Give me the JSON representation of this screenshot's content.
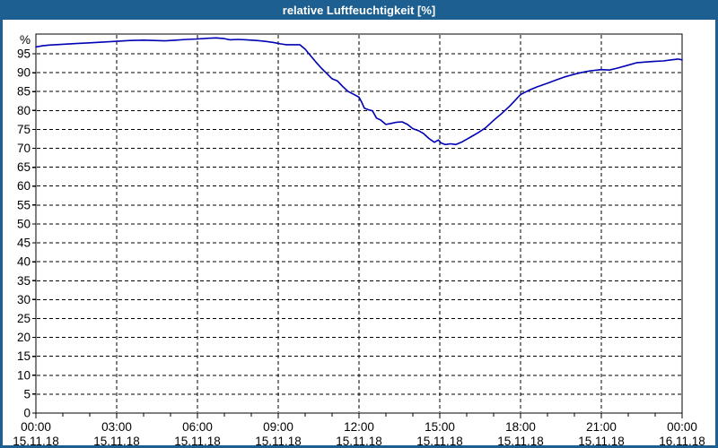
{
  "window": {
    "title": "relative Luftfeuchtigkeit [%]",
    "title_bar_color": "#1d5f90",
    "background_color": "#ffffff"
  },
  "chart_data": {
    "type": "line",
    "title": "relative Luftfeuchtigkeit [%]",
    "unit_label": "%",
    "grid": "dashed black, horizontal every 5 %, vertical every 3 h",
    "legend_position": "none",
    "x_axis": {
      "range_hours": [
        0,
        24
      ],
      "minor_tick_every_hours": 1,
      "major_tick_every_hours": 3,
      "major_ticks": [
        {
          "hour": 0,
          "time": "00:00",
          "date": "15.11.18"
        },
        {
          "hour": 3,
          "time": "03:00",
          "date": "15.11.18"
        },
        {
          "hour": 6,
          "time": "06:00",
          "date": "15.11.18"
        },
        {
          "hour": 9,
          "time": "09:00",
          "date": "15.11.18"
        },
        {
          "hour": 12,
          "time": "12:00",
          "date": "15.11.18"
        },
        {
          "hour": 15,
          "time": "15:00",
          "date": "15.11.18"
        },
        {
          "hour": 18,
          "time": "18:00",
          "date": "15.11.18"
        },
        {
          "hour": 21,
          "time": "21:00",
          "date": "15.11.18"
        },
        {
          "hour": 24,
          "time": "00:00",
          "date": "16.11.18"
        }
      ]
    },
    "y_axis": {
      "min": 0,
      "top_of_plot_value": 100,
      "tick_step": 5,
      "tick_values": [
        0,
        5,
        10,
        15,
        20,
        25,
        30,
        35,
        40,
        45,
        50,
        55,
        60,
        65,
        70,
        75,
        80,
        85,
        90,
        95
      ],
      "unit": "%"
    },
    "series": [
      {
        "name": "relative Luftfeuchtigkeit",
        "color": "#0000b4",
        "points": [
          [
            0.0,
            96.8
          ],
          [
            0.25,
            97.1
          ],
          [
            0.5,
            97.3
          ],
          [
            1.0,
            97.5
          ],
          [
            1.5,
            97.7
          ],
          [
            2.0,
            97.9
          ],
          [
            2.5,
            98.1
          ],
          [
            3.0,
            98.3
          ],
          [
            3.5,
            98.5
          ],
          [
            4.0,
            98.6
          ],
          [
            4.4,
            98.5
          ],
          [
            4.8,
            98.4
          ],
          [
            5.2,
            98.6
          ],
          [
            5.6,
            98.8
          ],
          [
            6.0,
            98.9
          ],
          [
            6.4,
            99.1
          ],
          [
            6.7,
            99.2
          ],
          [
            7.0,
            99.0
          ],
          [
            7.2,
            98.7
          ],
          [
            7.5,
            98.8
          ],
          [
            7.8,
            98.7
          ],
          [
            8.2,
            98.5
          ],
          [
            8.5,
            98.3
          ],
          [
            8.8,
            98.0
          ],
          [
            9.1,
            97.6
          ],
          [
            9.3,
            97.4
          ],
          [
            9.8,
            97.4
          ],
          [
            10.0,
            96.2
          ],
          [
            10.2,
            94.5
          ],
          [
            10.4,
            92.8
          ],
          [
            10.6,
            91.2
          ],
          [
            10.8,
            89.8
          ],
          [
            11.0,
            88.4
          ],
          [
            11.2,
            87.8
          ],
          [
            11.4,
            86.3
          ],
          [
            11.6,
            85.0
          ],
          [
            11.8,
            84.3
          ],
          [
            12.0,
            83.5
          ],
          [
            12.1,
            82.2
          ],
          [
            12.2,
            80.6
          ],
          [
            12.35,
            80.2
          ],
          [
            12.5,
            79.9
          ],
          [
            12.65,
            78.0
          ],
          [
            12.8,
            77.5
          ],
          [
            13.0,
            76.3
          ],
          [
            13.2,
            76.6
          ],
          [
            13.4,
            76.9
          ],
          [
            13.6,
            77.0
          ],
          [
            13.8,
            76.3
          ],
          [
            14.0,
            75.2
          ],
          [
            14.2,
            74.7
          ],
          [
            14.4,
            73.9
          ],
          [
            14.6,
            72.6
          ],
          [
            14.8,
            71.6
          ],
          [
            14.95,
            72.2
          ],
          [
            15.05,
            71.4
          ],
          [
            15.2,
            71.0
          ],
          [
            15.4,
            71.2
          ],
          [
            15.6,
            71.0
          ],
          [
            15.8,
            71.6
          ],
          [
            16.0,
            72.4
          ],
          [
            16.2,
            73.2
          ],
          [
            16.4,
            74.0
          ],
          [
            16.7,
            75.4
          ],
          [
            17.0,
            77.4
          ],
          [
            17.3,
            79.2
          ],
          [
            17.6,
            81.2
          ],
          [
            18.0,
            84.2
          ],
          [
            18.3,
            85.3
          ],
          [
            18.6,
            86.2
          ],
          [
            19.0,
            87.2
          ],
          [
            19.3,
            88.0
          ],
          [
            19.6,
            88.8
          ],
          [
            20.0,
            89.6
          ],
          [
            20.3,
            90.1
          ],
          [
            20.6,
            90.5
          ],
          [
            21.0,
            90.8
          ],
          [
            21.3,
            90.7
          ],
          [
            21.6,
            91.2
          ],
          [
            22.0,
            92.0
          ],
          [
            22.3,
            92.6
          ],
          [
            22.6,
            92.8
          ],
          [
            23.0,
            93.0
          ],
          [
            23.3,
            93.1
          ],
          [
            23.6,
            93.4
          ],
          [
            23.85,
            93.6
          ],
          [
            24.0,
            93.4
          ]
        ]
      }
    ]
  }
}
